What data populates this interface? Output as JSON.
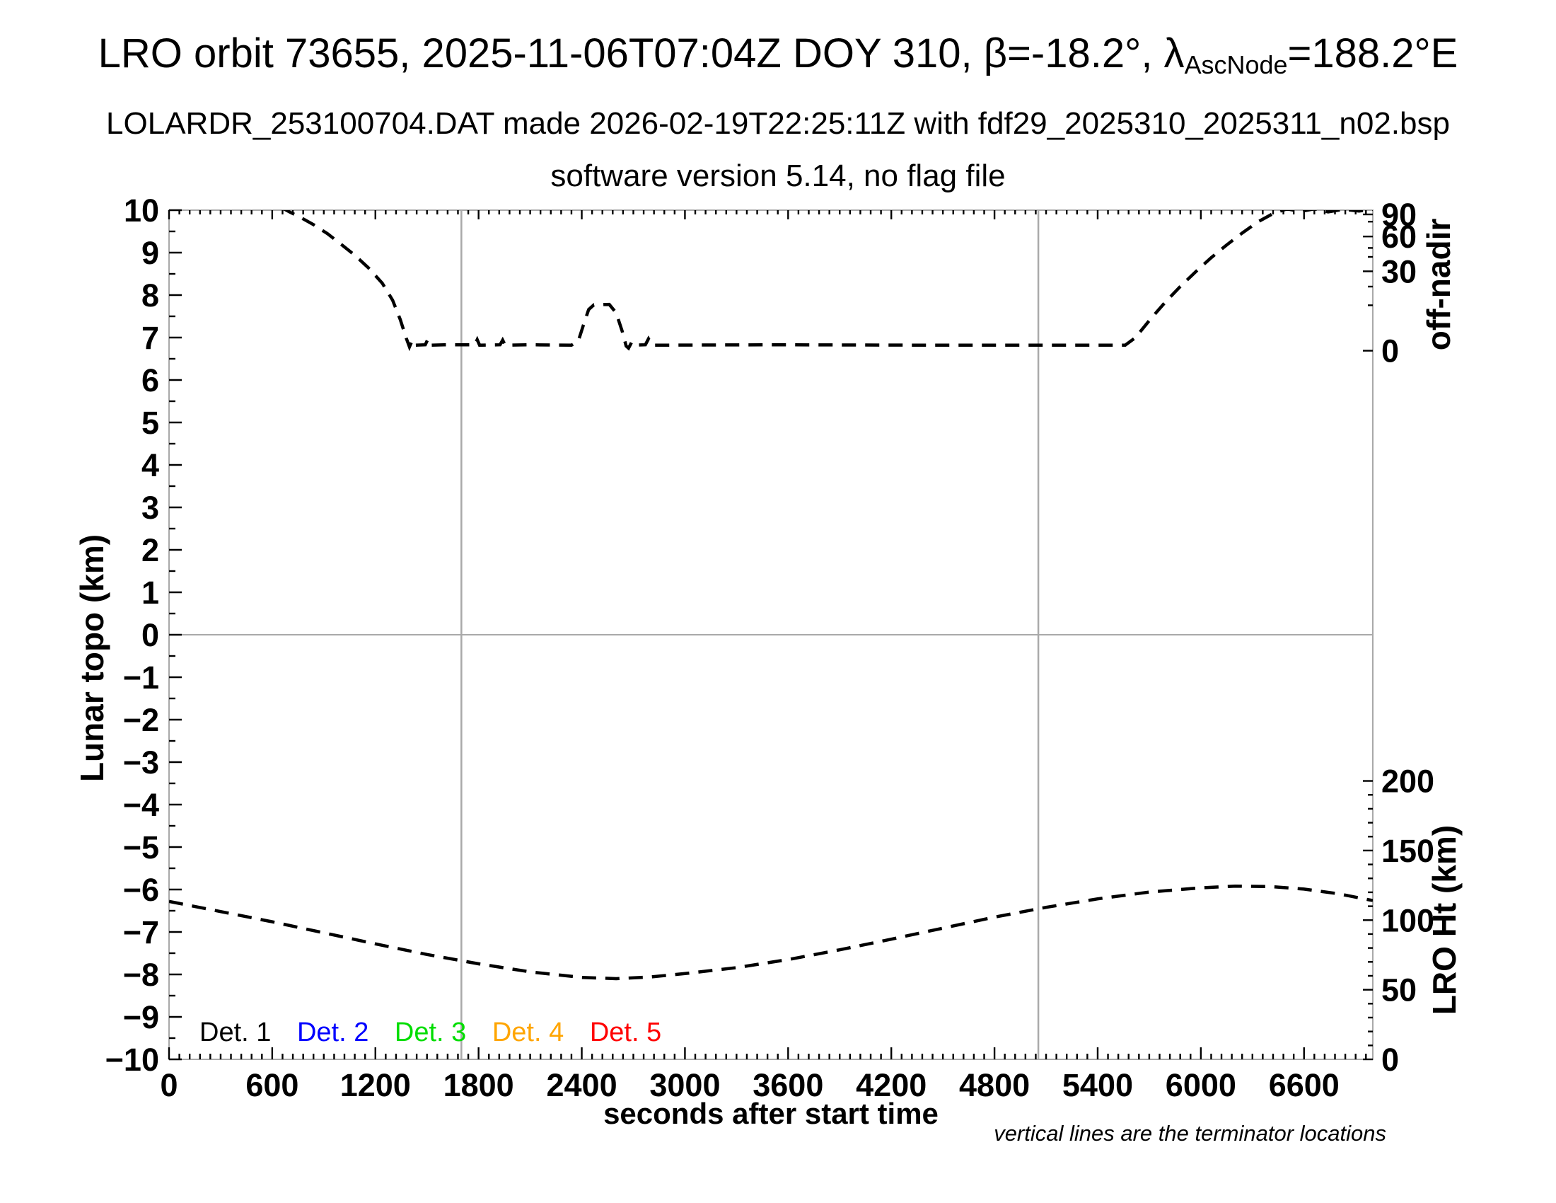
{
  "title": {
    "prefix": "LRO orbit 73655, 2025-11-06T07:04Z DOY 310, β=-18.2°, λ",
    "subscript": "AscNode",
    "suffix": "=188.2°E"
  },
  "subtitle1": "LOLARDR_253100704.DAT made 2026-02-19T22:25:11Z with fdf29_2025310_2025311_n02.bsp",
  "subtitle2": "software version 5.14, no flag file",
  "footnote": "vertical lines are the terminator locations",
  "legend": {
    "items": [
      {
        "label": "Det. 1",
        "color": "#000000"
      },
      {
        "label": "Det. 2",
        "color": "#0000ff"
      },
      {
        "label": "Det. 3",
        "color": "#00dd00"
      },
      {
        "label": "Det. 4",
        "color": "#ffa500"
      },
      {
        "label": "Det. 5",
        "color": "#ff0000"
      }
    ]
  },
  "chart_data": {
    "type": "line",
    "grid": "terminator vertical lines + zero horizontal line only",
    "x_axis": {
      "label": "seconds after start time",
      "min": 0,
      "max": 7000,
      "tick_labels": [
        "0",
        "600",
        "1200",
        "1800",
        "2400",
        "3000",
        "3600",
        "4200",
        "4800",
        "5400",
        "6000",
        "6600"
      ],
      "major_step": 600,
      "minor_step": 60
    },
    "y_axis_left": {
      "label": "Lunar topo (km)",
      "min": -10,
      "max": 10,
      "major_step": 1,
      "minor_step": 0.5,
      "tick_labels": [
        "10",
        "9",
        "8",
        "7",
        "6",
        "5",
        "4",
        "3",
        "2",
        "1",
        "0",
        "−1",
        "−2",
        "−3",
        "−4",
        "−5",
        "−6",
        "−7",
        "−8",
        "−9",
        "−10"
      ]
    },
    "y_axis_right_top": {
      "label": "off-nadir",
      "unit": "degrees (nonlinear scale)",
      "majors": [
        {
          "label": "90",
          "v": 9.9
        },
        {
          "label": "60",
          "v": 9.38
        },
        {
          "label": "30",
          "v": 8.56
        },
        {
          "label": "0",
          "v": 6.69
        }
      ],
      "minors_v": [
        9.73,
        9.11,
        8.9,
        8.2,
        7.76
      ]
    },
    "y_axis_right_bottom": {
      "label": "LRO Ht (km)",
      "major_labels_km": [
        200,
        150,
        100,
        50,
        0
      ],
      "minor_step_km": 10,
      "km_range": [
        0,
        200
      ],
      "v_of_km": "v = -10 + km * 0.032787"
    },
    "terminator_lines_t": [
      1700,
      5055
    ],
    "zero_line_v": 0,
    "series": [
      {
        "name": "off-nadir angle",
        "axis": "right-top (off-nadir), clipped at plot top before ~680 s and after ~6450 s; flat section sits just above 0°; slew bump ~2400-2650 s",
        "style": "dashed black",
        "points": [
          [
            655,
            10.06
          ],
          [
            700,
            9.96
          ],
          [
            760,
            9.84
          ],
          [
            840,
            9.66
          ],
          [
            920,
            9.45
          ],
          [
            1000,
            9.2
          ],
          [
            1080,
            8.94
          ],
          [
            1160,
            8.64
          ],
          [
            1240,
            8.28
          ],
          [
            1300,
            7.88
          ],
          [
            1345,
            7.42
          ],
          [
            1380,
            6.98
          ],
          [
            1398,
            6.78
          ],
          [
            1415,
            6.94
          ],
          [
            1432,
            6.82
          ],
          [
            1490,
            6.83
          ],
          [
            1505,
            6.96
          ],
          [
            1520,
            6.82
          ],
          [
            1600,
            6.83
          ],
          [
            1778,
            6.83
          ],
          [
            1792,
            6.95
          ],
          [
            1806,
            6.82
          ],
          [
            1925,
            6.83
          ],
          [
            1940,
            6.94
          ],
          [
            1955,
            6.82
          ],
          [
            2100,
            6.83
          ],
          [
            2340,
            6.82
          ],
          [
            2380,
            6.92
          ],
          [
            2410,
            7.3
          ],
          [
            2440,
            7.66
          ],
          [
            2470,
            7.77
          ],
          [
            2560,
            7.78
          ],
          [
            2600,
            7.58
          ],
          [
            2635,
            7.15
          ],
          [
            2658,
            6.8
          ],
          [
            2672,
            6.75
          ],
          [
            2690,
            6.89
          ],
          [
            2706,
            6.82
          ],
          [
            2770,
            6.83
          ],
          [
            2788,
            6.97
          ],
          [
            2810,
            6.82
          ],
          [
            3500,
            6.83
          ],
          [
            4500,
            6.82
          ],
          [
            5560,
            6.82
          ],
          [
            5620,
            7.0
          ],
          [
            5700,
            7.4
          ],
          [
            5790,
            7.82
          ],
          [
            5880,
            8.2
          ],
          [
            5970,
            8.55
          ],
          [
            6060,
            8.88
          ],
          [
            6150,
            9.18
          ],
          [
            6240,
            9.46
          ],
          [
            6330,
            9.72
          ],
          [
            6420,
            9.92
          ],
          [
            6500,
            10.03
          ],
          [
            6580,
            9.97
          ],
          [
            6660,
            10.03
          ],
          [
            6740,
            9.96
          ],
          [
            6830,
            10.02
          ],
          [
            6920,
            9.98
          ],
          [
            7000,
            10.02
          ]
        ]
      },
      {
        "name": "LRO height above surface",
        "axis": "right-bottom (LRO Ht km): starts ~113 km, min ~57 km near 2500 s, max ~123 km near 6150 s, ends ~113 km",
        "style": "dashed black",
        "points": [
          [
            0,
            -6.28
          ],
          [
            300,
            -6.52
          ],
          [
            600,
            -6.76
          ],
          [
            900,
            -7.02
          ],
          [
            1200,
            -7.28
          ],
          [
            1500,
            -7.53
          ],
          [
            1800,
            -7.75
          ],
          [
            2100,
            -7.94
          ],
          [
            2400,
            -8.07
          ],
          [
            2600,
            -8.1
          ],
          [
            2800,
            -8.06
          ],
          [
            3000,
            -7.98
          ],
          [
            3300,
            -7.84
          ],
          [
            3600,
            -7.65
          ],
          [
            3900,
            -7.42
          ],
          [
            4200,
            -7.17
          ],
          [
            4500,
            -6.91
          ],
          [
            4800,
            -6.65
          ],
          [
            5100,
            -6.42
          ],
          [
            5400,
            -6.22
          ],
          [
            5700,
            -6.06
          ],
          [
            6000,
            -5.96
          ],
          [
            6200,
            -5.92
          ],
          [
            6400,
            -5.93
          ],
          [
            6600,
            -5.99
          ],
          [
            6800,
            -6.1
          ],
          [
            7000,
            -6.26
          ]
        ]
      }
    ],
    "styles": {
      "curve_color": "#000000",
      "curve_width": 4.5,
      "curve_dash": "20 13",
      "frame_color": "#a9a9a9",
      "grid_color": "#a9a9a9",
      "tick_color": "#000000"
    }
  }
}
